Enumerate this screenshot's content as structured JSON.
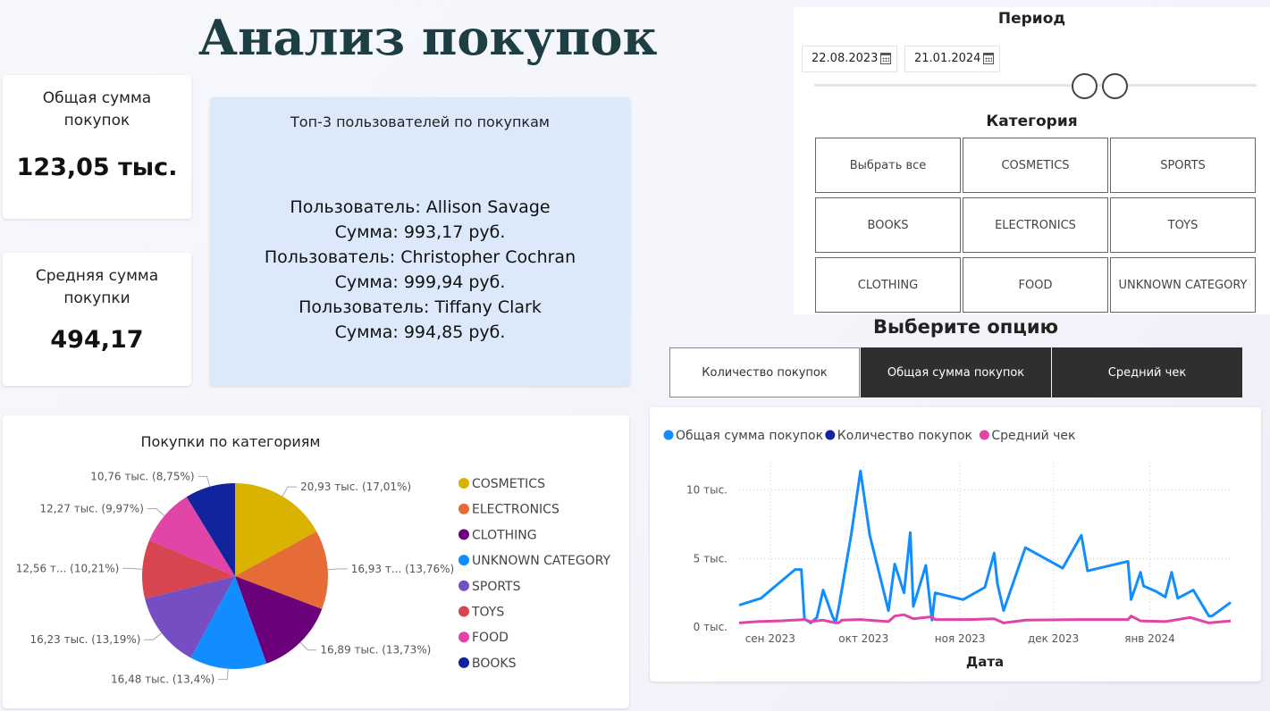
{
  "page": {
    "title": "Анализ покупок"
  },
  "kpis": [
    {
      "label": "Общая сумма покупок",
      "value": "123,05 тыс."
    },
    {
      "label": "Средняя сумма покупки",
      "value": "494,17"
    }
  ],
  "top3": {
    "header": "Топ-3 пользователей по покупкам",
    "lines": [
      "Пользователь: Allison Savage",
      "Сумма: 993,17 руб.",
      "Пользователь: Christopher Cochran",
      "Сумма: 999,94 руб.",
      "Пользователь: Tiffany Clark",
      "Сумма: 994,85 руб."
    ]
  },
  "filters": {
    "period_title": "Период",
    "start_date": "22.08.2023",
    "end_date": "21.01.2024",
    "calendar_icon": "calendar-icon",
    "category_title": "Категория",
    "categories": [
      "Выбрать все",
      "COSMETICS",
      "SPORTS",
      "BOOKS",
      "ELECTRONICS",
      "TOYS",
      "CLOTHING",
      "FOOD",
      "UNKNOWN CATEGORY"
    ]
  },
  "options": {
    "title": "Выберите опцию",
    "buttons": [
      {
        "label": "Количество покупок",
        "style": "light"
      },
      {
        "label": "Общая сумма покупок",
        "style": "dark"
      },
      {
        "label": "Средний чек",
        "style": "dark"
      }
    ]
  },
  "chart_data": [
    {
      "type": "pie",
      "title": "Покупки по категориям",
      "legend_position": "right",
      "slices": [
        {
          "name": "COSMETICS",
          "value": 20.93,
          "percent": 17.01,
          "label": "20,93 тыс. (17,01%)",
          "color": "#d9b300"
        },
        {
          "name": "ELECTRONICS",
          "value": 16.93,
          "percent": 13.76,
          "label": "16,93 т... (13,76%)",
          "color": "#e66c37"
        },
        {
          "name": "CLOTHING",
          "value": 16.89,
          "percent": 13.73,
          "label": "16,89 тыс. (13,73%)",
          "color": "#6b007b"
        },
        {
          "name": "UNKNOWN CATEGORY",
          "value": 16.48,
          "percent": 13.4,
          "label": "16,48 тыс. (13,4%)",
          "color": "#118dff"
        },
        {
          "name": "SPORTS",
          "value": 16.23,
          "percent": 13.19,
          "label": "16,23 тыс. (13,19%)",
          "color": "#744ec2"
        },
        {
          "name": "TOYS",
          "value": 12.56,
          "percent": 10.21,
          "label": "12,56 т... (10,21%)",
          "color": "#d64550"
        },
        {
          "name": "FOOD",
          "value": 12.27,
          "percent": 9.97,
          "label": "12,27 тыс. (9,97%)",
          "color": "#e044a7"
        },
        {
          "name": "BOOKS",
          "value": 10.76,
          "percent": 8.75,
          "label": "10,76 тыс. (8,75%)",
          "color": "#12239e"
        }
      ]
    },
    {
      "type": "line",
      "xlabel": "Дата",
      "ylabel": "",
      "grid": true,
      "legend_position": "top-left",
      "x_ticks": [
        {
          "date": "2023-09-01",
          "label": "сен 2023"
        },
        {
          "date": "2023-10-01",
          "label": "окт 2023"
        },
        {
          "date": "2023-11-01",
          "label": "ноя 2023"
        },
        {
          "date": "2023-12-01",
          "label": "дек 2023"
        },
        {
          "date": "2024-01-01",
          "label": "янв 2024"
        }
      ],
      "xlim": [
        "2023-08-22",
        "2024-01-21"
      ],
      "y_ticks": [
        {
          "value": 0,
          "label": "0 тыс."
        },
        {
          "value": 5000,
          "label": "5 тыс."
        },
        {
          "value": 10000,
          "label": "10 тыс."
        }
      ],
      "ylim": [
        0,
        12000
      ],
      "series": [
        {
          "name": "Общая сумма покупок",
          "color": "#118dff",
          "points": [
            [
              "2023-08-22",
              1600
            ],
            [
              "2023-08-29",
              2100
            ],
            [
              "2023-09-09",
              4200
            ],
            [
              "2023-09-11",
              4200
            ],
            [
              "2023-09-12",
              600
            ],
            [
              "2023-09-14",
              300
            ],
            [
              "2023-09-16",
              700
            ],
            [
              "2023-09-18",
              2700
            ],
            [
              "2023-09-21",
              800
            ],
            [
              "2023-09-22",
              300
            ],
            [
              "2023-09-23",
              1400
            ],
            [
              "2023-09-27",
              6700
            ],
            [
              "2023-09-30",
              11400
            ],
            [
              "2023-10-03",
              6700
            ],
            [
              "2023-10-09",
              1200
            ],
            [
              "2023-10-11",
              4600
            ],
            [
              "2023-10-14",
              2500
            ],
            [
              "2023-10-16",
              6900
            ],
            [
              "2023-10-17",
              1500
            ],
            [
              "2023-10-21",
              4500
            ],
            [
              "2023-10-23",
              500
            ],
            [
              "2023-10-24",
              2500
            ],
            [
              "2023-11-02",
              2000
            ],
            [
              "2023-11-09",
              2900
            ],
            [
              "2023-11-12",
              5400
            ],
            [
              "2023-11-13",
              3200
            ],
            [
              "2023-11-15",
              1200
            ],
            [
              "2023-11-22",
              5800
            ],
            [
              "2023-12-04",
              4300
            ],
            [
              "2023-12-10",
              6700
            ],
            [
              "2023-12-12",
              4100
            ],
            [
              "2023-12-25",
              4800
            ],
            [
              "2023-12-26",
              2000
            ],
            [
              "2023-12-29",
              4000
            ],
            [
              "2023-12-30",
              3000
            ],
            [
              "2024-01-03",
              2600
            ],
            [
              "2024-01-06",
              2200
            ],
            [
              "2024-01-08",
              4000
            ],
            [
              "2024-01-10",
              2100
            ],
            [
              "2024-01-15",
              2700
            ],
            [
              "2024-01-20",
              800
            ],
            [
              "2024-01-21",
              800
            ],
            [
              "2024-01-27",
              1800
            ]
          ]
        },
        {
          "name": "Количество покупок",
          "color": "#12239e",
          "points": [
            [
              "2023-08-22",
              10
            ],
            [
              "2023-10-01",
              10
            ],
            [
              "2023-11-01",
              10
            ],
            [
              "2023-12-01",
              10
            ],
            [
              "2024-01-01",
              10
            ],
            [
              "2024-01-27",
              10
            ]
          ]
        },
        {
          "name": "Средний чек",
          "color": "#e044a7",
          "points": [
            [
              "2023-08-22",
              300
            ],
            [
              "2023-08-28",
              400
            ],
            [
              "2023-09-04",
              450
            ],
            [
              "2023-09-12",
              550
            ],
            [
              "2023-09-14",
              400
            ],
            [
              "2023-09-18",
              500
            ],
            [
              "2023-09-21",
              350
            ],
            [
              "2023-09-23",
              300
            ],
            [
              "2023-09-24",
              500
            ],
            [
              "2023-09-30",
              550
            ],
            [
              "2023-10-06",
              450
            ],
            [
              "2023-10-09",
              400
            ],
            [
              "2023-10-11",
              800
            ],
            [
              "2023-10-14",
              900
            ],
            [
              "2023-10-17",
              600
            ],
            [
              "2023-10-23",
              750
            ],
            [
              "2023-10-24",
              550
            ],
            [
              "2023-11-04",
              550
            ],
            [
              "2023-11-12",
              600
            ],
            [
              "2023-11-15",
              300
            ],
            [
              "2023-11-22",
              500
            ],
            [
              "2023-12-10",
              550
            ],
            [
              "2023-12-25",
              550
            ],
            [
              "2023-12-26",
              800
            ],
            [
              "2023-12-29",
              450
            ],
            [
              "2024-01-06",
              400
            ],
            [
              "2024-01-14",
              700
            ],
            [
              "2024-01-20",
              300
            ],
            [
              "2024-01-27",
              450
            ]
          ]
        }
      ]
    }
  ]
}
